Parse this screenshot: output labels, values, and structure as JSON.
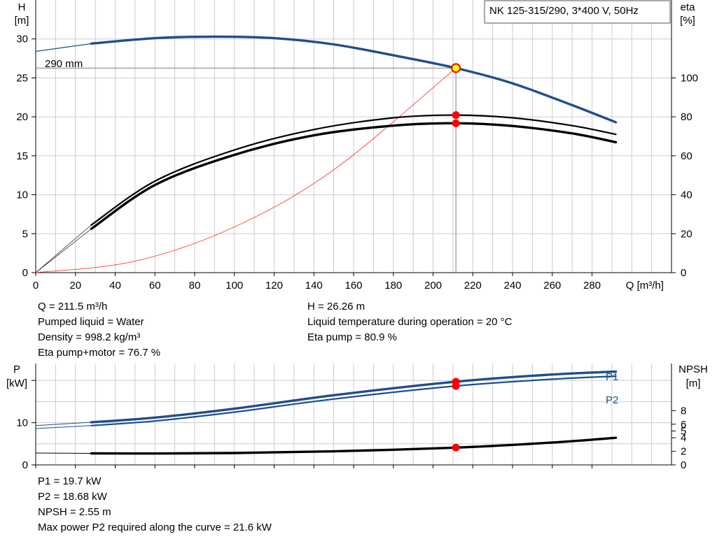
{
  "title": "NK 125-315/290, 3*400 V, 50Hz",
  "colors": {
    "pump_curve": "#1f4e8c",
    "efficiency": "#000000",
    "system_curve": "#ff3b3b",
    "marker": "#ff0000",
    "duty_marker_fill": "#ffff00",
    "grid": "#cccccc"
  },
  "chart_data": [
    {
      "type": "line",
      "name": "QH",
      "xlabel": "Q [m³/h]",
      "ylabel_left": "H",
      "ylabel_left_unit": "[m]",
      "ylabel_right": "eta",
      "ylabel_right_unit": "[%]",
      "xlim": [
        0,
        320
      ],
      "xticks": [
        0,
        20,
        40,
        60,
        80,
        100,
        120,
        140,
        160,
        180,
        200,
        220,
        240,
        260,
        280
      ],
      "ylim_left": [
        0,
        35
      ],
      "yticks_left": [
        0,
        5,
        10,
        15,
        20,
        25,
        30
      ],
      "ylim_right": [
        0,
        140
      ],
      "yticks_right": [
        0,
        20,
        40,
        60,
        80,
        100
      ],
      "grid": true,
      "curve_label": "290 mm",
      "series": [
        {
          "axis": "left",
          "x": [
            0,
            28,
            60,
            90,
            120,
            150,
            180,
            211.5,
            240,
            270,
            292
          ],
          "y": [
            28.4,
            29.4,
            30.1,
            30.3,
            30.1,
            29.3,
            27.9,
            26.26,
            24.3,
            21.5,
            19.3
          ]
        },
        {
          "axis": "right",
          "x": [
            0,
            28,
            60,
            100,
            140,
            180,
            211.5,
            240,
            270,
            292
          ],
          "y": [
            0,
            24.5,
            47,
            63,
            73.5,
            79.5,
            80.9,
            79.5,
            75.5,
            71
          ]
        },
        {
          "axis": "right",
          "x": [
            0,
            28,
            60,
            100,
            140,
            180,
            211.5,
            240,
            270,
            292
          ],
          "y": [
            0,
            22.5,
            45,
            60.5,
            70.5,
            75.5,
            76.7,
            75.3,
            71.5,
            67
          ]
        },
        {
          "axis": "left",
          "x": [
            0,
            50,
            100,
            150,
            211.5
          ],
          "y": [
            0,
            1.47,
            5.87,
            13.2,
            26.26
          ]
        }
      ],
      "duty_point": {
        "Q": 211.5,
        "H": 26.26,
        "eta_pump": 80.9,
        "eta_total": 76.7
      },
      "info_left": [
        "Q = 211.5 m³/h",
        "Pumped liquid = Water",
        "Density = 998.2 kg/m³",
        "Eta pump+motor = 76.7 %"
      ],
      "info_right": [
        "H = 26.26 m",
        "Liquid temperature during operation = 20 °C",
        "Eta pump = 80.9 %"
      ]
    },
    {
      "type": "line",
      "name": "Power",
      "ylabel_left": "P",
      "ylabel_left_unit": "[kW]",
      "ylabel_right": "NPSH",
      "ylabel_right_unit": "[m]",
      "xlim": [
        0,
        320
      ],
      "ylim_left": [
        0,
        24
      ],
      "yticks_left": [
        0,
        10
      ],
      "ylim_right": [
        0,
        10
      ],
      "yticks_right": [
        0,
        2,
        4,
        5,
        6,
        8
      ],
      "grid": true,
      "series": [
        {
          "name": "P1",
          "axis": "left",
          "x": [
            0,
            28,
            60,
            100,
            150,
            211.5,
            260,
            292
          ],
          "y": [
            9.3,
            10.1,
            11.2,
            13.3,
            16.5,
            19.7,
            21.4,
            22.1
          ]
        },
        {
          "name": "P2",
          "axis": "left",
          "x": [
            0,
            28,
            60,
            100,
            150,
            211.5,
            260,
            292
          ],
          "y": [
            8.6,
            9.3,
            10.4,
            12.5,
            15.6,
            18.68,
            20.3,
            21.0
          ]
        },
        {
          "axis": "right",
          "x": [
            0,
            28,
            60,
            100,
            150,
            211.5,
            260,
            292
          ],
          "y": [
            1.75,
            1.7,
            1.68,
            1.75,
            2.0,
            2.55,
            3.3,
            4.0
          ]
        }
      ],
      "duty_point": {
        "Q": 211.5,
        "P1": 19.7,
        "P2": 18.68,
        "NPSH": 2.55
      },
      "info": [
        "P1 = 19.7 kW",
        "P2 = 18.68 kW",
        "NPSH = 2.55 m",
        "Max power P2 required along the curve = 21.6 kW"
      ]
    }
  ]
}
